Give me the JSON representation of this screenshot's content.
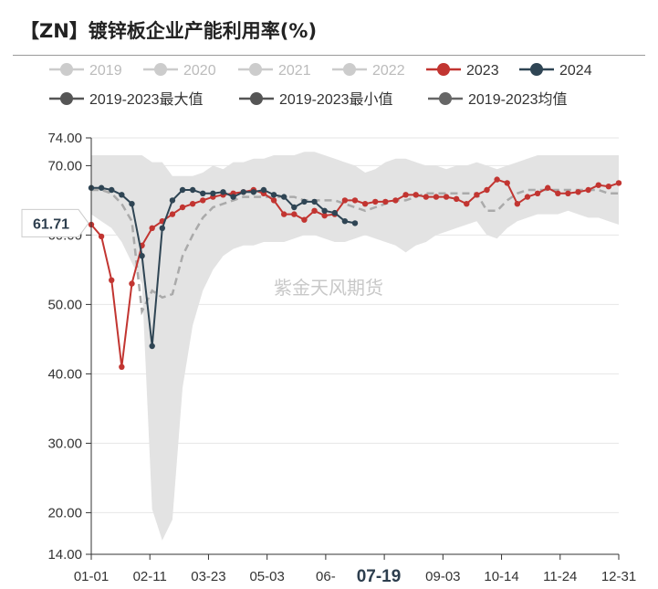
{
  "title": "【ZN】镀锌板企业产能利用率(%)",
  "watermark": "紫金天风期货",
  "colors": {
    "c2019": "#cccccc",
    "c2020": "#cccccc",
    "c2021": "#cccccc",
    "c2022": "#cccccc",
    "c2023": "#c23531",
    "c2024": "#2f4554",
    "cmax": "#555555",
    "cmin": "#555555",
    "cavg": "#666666",
    "band": "#e3e3e3",
    "avg_line": "#aaaaaa"
  },
  "chart_data": {
    "type": "line",
    "x_tick_labels": [
      "01-01",
      "02-11",
      "03-23",
      "05-03",
      "06-",
      "07-19",
      "09-03",
      "10-14",
      "11-24",
      "12-31"
    ],
    "y_ticks": [
      "74.00",
      "70.00",
      "60.00",
      "50.00",
      "40.00",
      "30.00",
      "20.00",
      "14.00"
    ],
    "ylim": [
      14,
      74
    ],
    "legend": [
      {
        "name": "2019",
        "active": false
      },
      {
        "name": "2020",
        "active": false
      },
      {
        "name": "2021",
        "active": false
      },
      {
        "name": "2022",
        "active": false
      },
      {
        "name": "2023",
        "active": true
      },
      {
        "name": "2024",
        "active": true
      },
      {
        "name": "2019-2023最大值",
        "active": true
      },
      {
        "name": "2019-2023最小值",
        "active": true
      },
      {
        "name": "2019-2023均值",
        "active": true
      }
    ],
    "cursor_label": "07-19",
    "callout_value": "61.71",
    "x_weeks": 52,
    "band": {
      "max": [
        71.5,
        71.5,
        71.5,
        71.5,
        71.5,
        71.5,
        70.5,
        70.5,
        68.5,
        68.5,
        68.5,
        69.0,
        70.0,
        69.5,
        70.5,
        70.5,
        71.0,
        71.0,
        71.5,
        71.5,
        71.5,
        72.0,
        72.0,
        71.5,
        71.0,
        70.5,
        70.0,
        69.0,
        69.5,
        70.5,
        71.0,
        71.0,
        70.5,
        70.0,
        70.0,
        69.5,
        70.0,
        70.0,
        70.5,
        70.0,
        69.5,
        70.0,
        70.5,
        71.0,
        71.5,
        71.5,
        71.5,
        71.5,
        71.5,
        71.5,
        71.5,
        71.5,
        71.5
      ],
      "min": [
        63.0,
        62.0,
        61.0,
        59.0,
        56.0,
        53.0,
        20.5,
        16.0,
        19.0,
        38.0,
        47.0,
        52.0,
        55.0,
        57.0,
        58.0,
        58.5,
        58.5,
        59.0,
        59.0,
        59.0,
        59.5,
        60.0,
        60.0,
        59.5,
        59.0,
        59.0,
        59.5,
        60.0,
        59.5,
        59.0,
        58.5,
        57.5,
        58.5,
        59.0,
        60.0,
        60.5,
        61.0,
        61.5,
        62.0,
        60.0,
        59.5,
        61.0,
        62.0,
        62.5,
        63.0,
        63.0,
        63.0,
        63.5,
        63.0,
        62.5,
        62.5,
        62.0,
        61.5
      ],
      "avg": [
        66.5,
        66.5,
        66.0,
        64.5,
        62.0,
        49.0,
        52.0,
        51.0,
        51.5,
        57.0,
        60.0,
        62.5,
        64.0,
        64.5,
        65.0,
        65.5,
        65.5,
        65.5,
        65.5,
        65.5,
        65.5,
        65.0,
        65.0,
        65.0,
        65.0,
        64.5,
        64.0,
        63.5,
        64.0,
        64.5,
        65.0,
        65.0,
        65.5,
        66.0,
        66.0,
        66.0,
        66.0,
        66.0,
        66.0,
        63.5,
        63.5,
        65.0,
        66.0,
        66.5,
        66.5,
        66.5,
        66.5,
        66.5,
        66.5,
        66.5,
        66.5,
        66.0,
        66.0
      ]
    },
    "series": [
      {
        "name": "2023",
        "values": [
          61.5,
          59.8,
          53.5,
          41.0,
          53.0,
          58.5,
          61.0,
          62.0,
          63.0,
          64.0,
          64.5,
          65.0,
          65.5,
          65.8,
          66.0,
          66.2,
          66.5,
          66.0,
          65.0,
          63.0,
          63.0,
          62.2,
          63.5,
          62.8,
          63.0,
          65.0,
          65.0,
          64.5,
          64.8,
          64.8,
          65.0,
          65.8,
          65.8,
          65.5,
          65.5,
          65.5,
          65.2,
          64.5,
          65.8,
          66.5,
          68.0,
          67.5,
          64.5,
          65.5,
          66.0,
          66.8,
          66.0,
          66.0,
          66.2,
          66.5,
          67.2,
          67.0,
          67.5
        ],
        "color": "#c23531"
      },
      {
        "name": "2024",
        "values": [
          66.8,
          66.8,
          66.5,
          65.8,
          64.5,
          57.0,
          44.0,
          61.0,
          65.0,
          66.5,
          66.5,
          66.0,
          66.0,
          66.2,
          65.5,
          66.2,
          66.2,
          66.5,
          65.8,
          65.5,
          64.0,
          64.8,
          64.8,
          63.5,
          63.2,
          62.0,
          61.71
        ],
        "color": "#2f4554"
      }
    ]
  }
}
